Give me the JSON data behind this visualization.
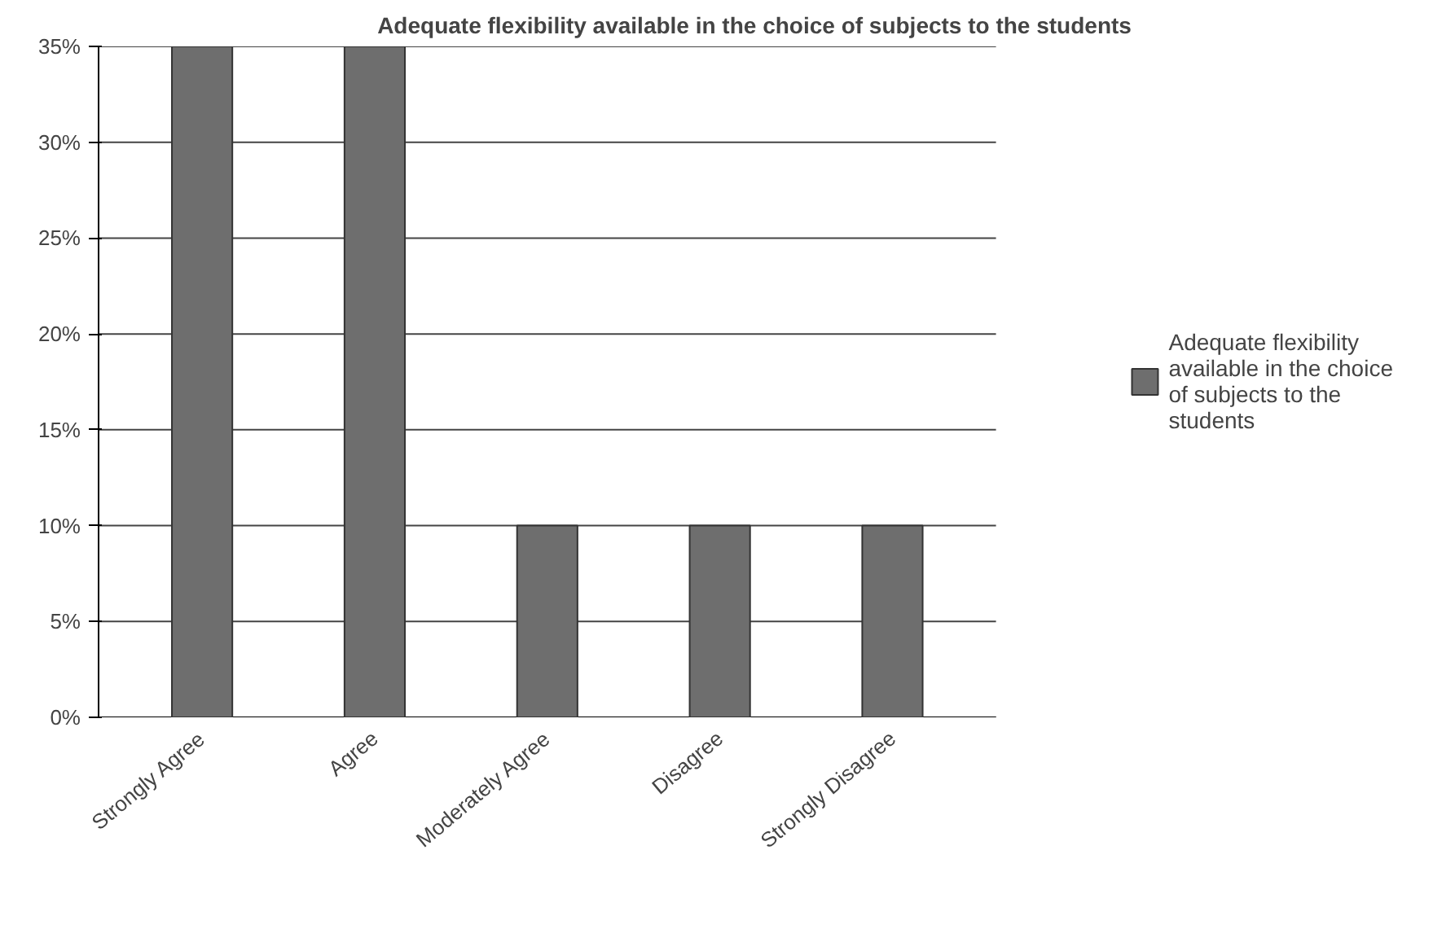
{
  "chart_data": {
    "type": "bar",
    "title": "Adequate flexibility available in the choice of subjects to the students",
    "categories": [
      "Strongly Agree",
      "Agree",
      "Moderately Agree",
      "Disagree",
      "Strongly Disagree"
    ],
    "series": [
      {
        "name": "Adequate flexibility available in the choice of subjects to the students",
        "color": "#6e6e6e",
        "values": [
          35,
          35,
          10,
          10,
          10
        ]
      }
    ],
    "ylim": [
      0,
      35
    ],
    "yticks": [
      {
        "value": 0,
        "label": "0%"
      },
      {
        "value": 5,
        "label": "5%"
      },
      {
        "value": 10,
        "label": "10%"
      },
      {
        "value": 15,
        "label": "15%"
      },
      {
        "value": 20,
        "label": "20%"
      },
      {
        "value": 25,
        "label": "25%"
      },
      {
        "value": 30,
        "label": "30%"
      },
      {
        "value": 35,
        "label": "35%"
      }
    ],
    "grid": "y",
    "legend": "right"
  }
}
